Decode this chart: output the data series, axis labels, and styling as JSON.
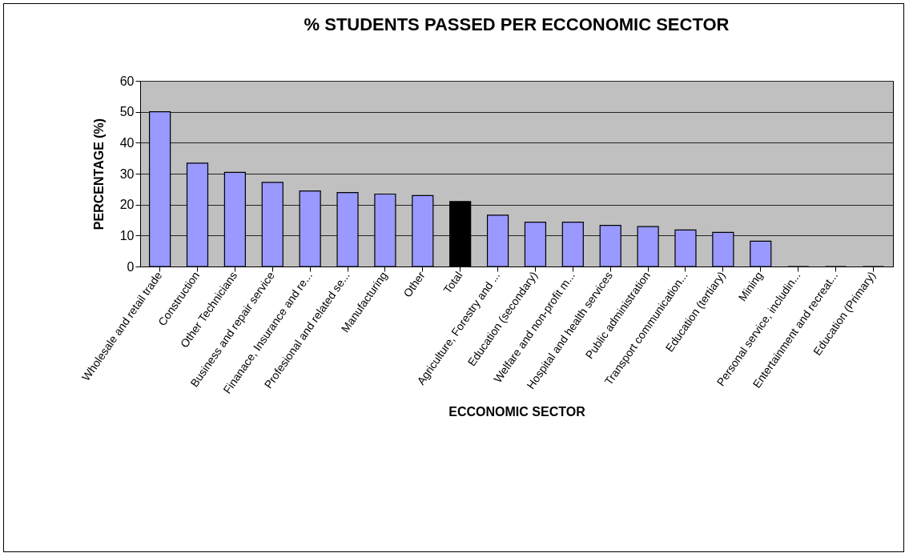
{
  "chart_data": {
    "type": "bar",
    "title": "% STUDENTS PASSED PER ECCONOMIC SECTOR",
    "xlabel": "ECCONOMIC SECTOR",
    "ylabel": "PERCENTAGE (%)",
    "categories": [
      "Wholesale and retail trade",
      "Construction",
      "Other Technicians",
      "Business and repair service",
      "Finanace, Insurance and re...",
      "Profesional and related se...",
      "Manufacturing",
      "Other",
      "Total",
      "Agriculture, Forestry and ...",
      "Education (secondary)",
      "Welfare and non-profit m...",
      "Hospital and health services",
      "Public administration",
      "Transport communication...",
      "Education (tertiary)",
      "Mining",
      "Personal service, includin...",
      "Entertainment and recreat...",
      "Education (Primary)"
    ],
    "values": [
      50,
      33.4,
      30.4,
      27.2,
      24.4,
      23.9,
      23.4,
      22.9,
      21,
      16.6,
      14.3,
      14.3,
      13.3,
      12.9,
      11.8,
      11,
      8.2,
      0,
      0,
      0
    ],
    "colors": [
      "#9999ff",
      "#9999ff",
      "#9999ff",
      "#9999ff",
      "#9999ff",
      "#9999ff",
      "#9999ff",
      "#9999ff",
      "#000000",
      "#9999ff",
      "#9999ff",
      "#9999ff",
      "#9999ff",
      "#9999ff",
      "#9999ff",
      "#9999ff",
      "#9999ff",
      "#9999ff",
      "#9999ff",
      "#9999ff"
    ],
    "ylim": [
      0,
      60
    ],
    "yticks": [
      0,
      10,
      20,
      30,
      40,
      50,
      60
    ],
    "grid": "y",
    "legend": false
  }
}
